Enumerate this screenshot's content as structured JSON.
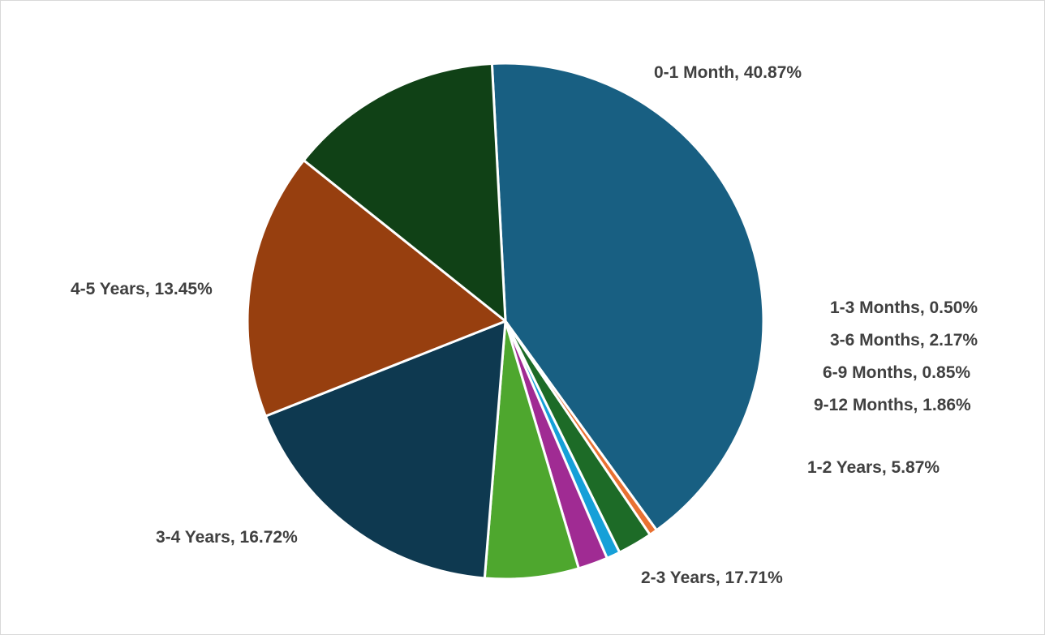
{
  "chart_data": {
    "type": "pie",
    "title": "",
    "start_angle_deg": 93,
    "direction": "clockwise",
    "legend": "none",
    "slices": [
      {
        "label": "0-1 Month",
        "value": 40.87,
        "data_label": "0-1 Month, 40.87%",
        "color": "#185f82"
      },
      {
        "label": "1-3 Months",
        "value": 0.5,
        "data_label": "1-3 Months, 0.50%",
        "color": "#e97132"
      },
      {
        "label": "3-6 Months",
        "value": 2.17,
        "data_label": "3-6 Months, 2.17%",
        "color": "#1d6b27"
      },
      {
        "label": "6-9 Months",
        "value": 0.85,
        "data_label": "6-9 Months, 0.85%",
        "color": "#16a0d8"
      },
      {
        "label": "9-12 Months",
        "value": 1.86,
        "data_label": "9-12 Months, 1.86%",
        "color": "#a02b93"
      },
      {
        "label": "1-2 Years",
        "value": 5.87,
        "data_label": "1-2 Years, 5.87%",
        "color": "#4ea72e"
      },
      {
        "label": "2-3 Years",
        "value": 17.71,
        "data_label": "2-3 Years, 17.71%",
        "color": "#0e3950"
      },
      {
        "label": "3-4 Years",
        "value": 16.72,
        "data_label": "3-4 Years, 16.72%",
        "color": "#973f0f"
      },
      {
        "label": "4-5 Years",
        "value": 13.45,
        "data_label": "4-5 Years, 13.45%",
        "color": "#104116"
      }
    ]
  }
}
